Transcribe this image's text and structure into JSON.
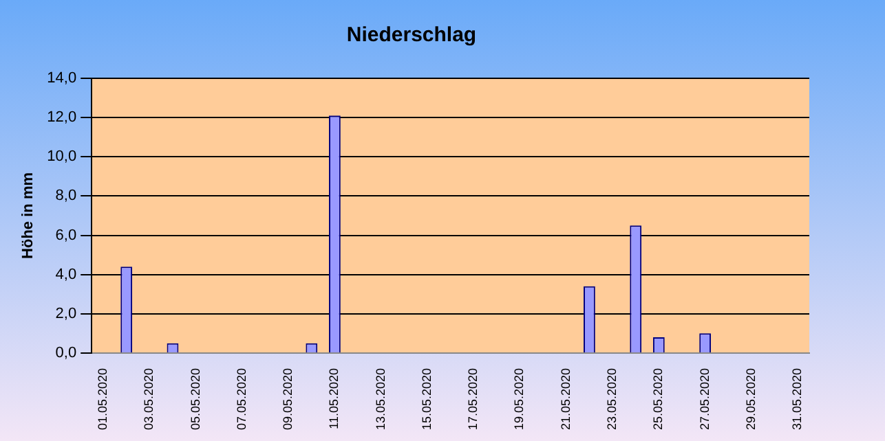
{
  "chart_data": {
    "type": "bar",
    "title": "Niederschlag",
    "ylabel": "Höhe in mm",
    "categories": [
      "01.05.2020",
      null,
      "03.05.2020",
      null,
      "05.05.2020",
      null,
      "07.05.2020",
      null,
      "09.05.2020",
      null,
      "11.05.2020",
      null,
      "13.05.2020",
      null,
      "15.05.2020",
      null,
      "17.05.2020",
      null,
      "19.05.2020",
      null,
      "21.05.2020",
      null,
      "23.05.2020",
      null,
      "25.05.2020",
      null,
      "27.05.2020",
      null,
      "29.05.2020",
      null,
      "31.05.2020"
    ],
    "values": [
      0,
      4.4,
      0,
      0.5,
      0,
      0,
      0,
      0,
      0,
      0.5,
      12.1,
      0,
      0,
      0,
      0,
      0,
      0,
      0,
      0,
      0,
      0,
      3.4,
      0,
      6.5,
      0.8,
      0,
      1.0,
      0,
      0,
      0,
      0
    ],
    "color": "#9999ff",
    "ylim": [
      0,
      14
    ],
    "yticks": [
      {
        "value": 0,
        "label": "0,0"
      },
      {
        "value": 2,
        "label": "2,0"
      },
      {
        "value": 4,
        "label": "4,0"
      },
      {
        "value": 6,
        "label": "6,0"
      },
      {
        "value": 8,
        "label": "8,0"
      },
      {
        "value": 10,
        "label": "10,0"
      },
      {
        "value": 12,
        "label": "12,0"
      },
      {
        "value": 14,
        "label": "14,0"
      }
    ],
    "grid": "y"
  }
}
